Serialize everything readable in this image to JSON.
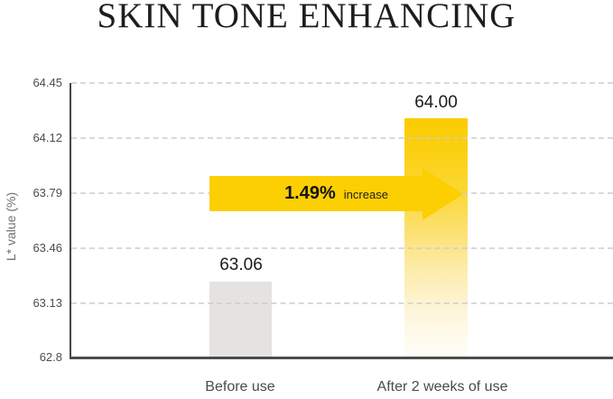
{
  "title": "SKIN TONE ENHANCING",
  "chart_data": {
    "type": "bar",
    "title": "SKIN TONE ENHANCING",
    "categories": [
      "Before use",
      "After 2 weeks of use"
    ],
    "values": [
      63.06,
      64.0
    ],
    "value_labels": [
      "63.06",
      "64.00"
    ],
    "xlabel": "",
    "ylabel": "L* value (%)",
    "ylim": [
      62.8,
      64.45
    ],
    "y_ticks": [
      "64.45",
      "64.12",
      "63.79",
      "63.46",
      "63.13",
      "62.8"
    ],
    "grid": "horizontal-dashed",
    "legend": "none",
    "annotation": {
      "percent": "1.49%",
      "label": "increase",
      "shape": "right-arrow"
    },
    "colors": {
      "bar_before": "#e4e3e2",
      "bar_after_top": "#fbcc01",
      "bar_after_bottom": "#fffdf8",
      "arrow": "#fccf02",
      "axis": "#4b4b4b",
      "gridline": "#cccccc",
      "background": "#ffffff"
    }
  }
}
